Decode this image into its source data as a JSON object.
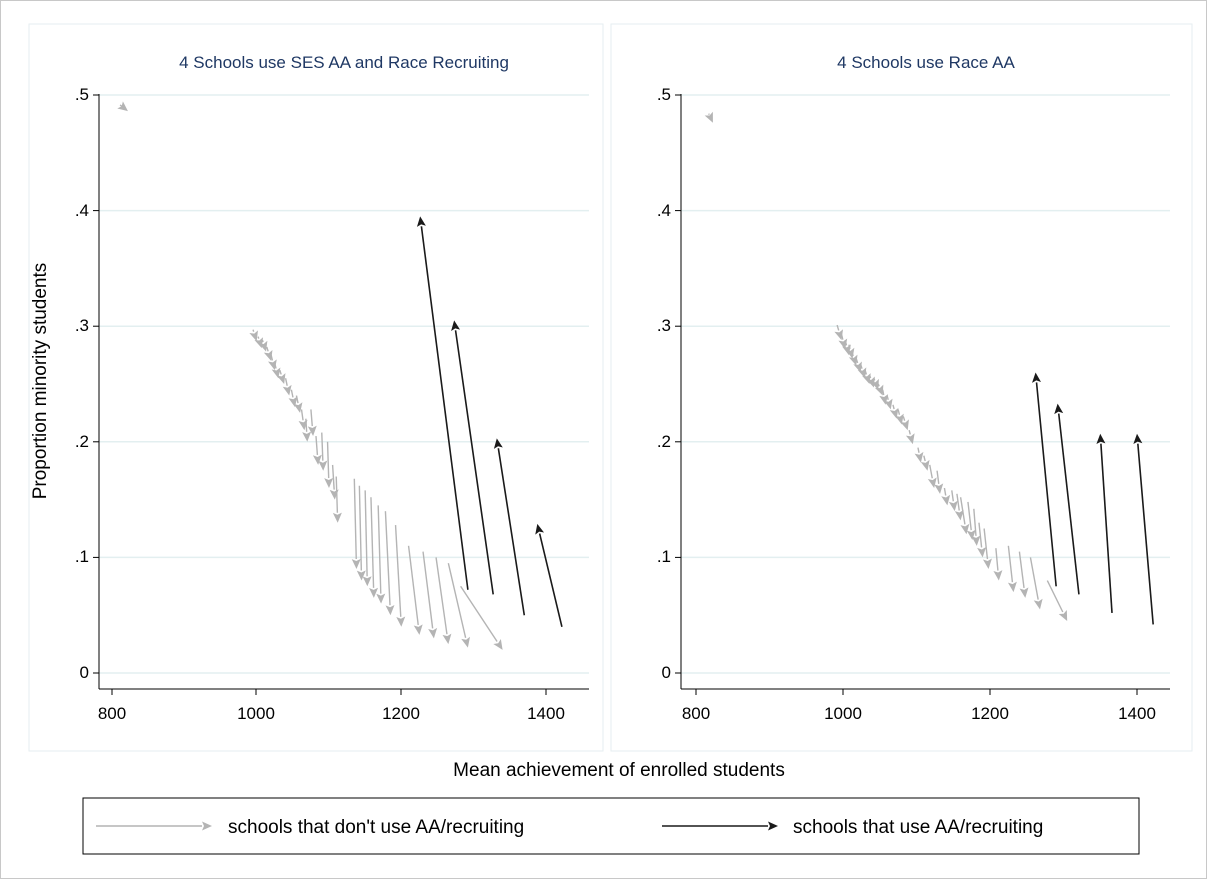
{
  "figure": {
    "ylabel": "Proportion minority students",
    "xlabel": "Mean achievement of enrolled students"
  },
  "legend": {
    "items": [
      {
        "label": "schools that don't use AA/recruiting",
        "color": "#b4b4b4"
      },
      {
        "label": "schools that use AA/recruiting",
        "color": "#1a1a1a"
      }
    ]
  },
  "chart_data": [
    {
      "type": "scatter",
      "title": "4 Schools use SES AA and Race Recruiting",
      "xlim": [
        800,
        1400
      ],
      "ylim": [
        0,
        0.5
      ],
      "xticks": [
        "800",
        "1000",
        "1200",
        "1400"
      ],
      "yticks": [
        ".5",
        ".4",
        ".3",
        ".2",
        ".1",
        "0"
      ],
      "grid": true,
      "series": [
        {
          "name": "schools that don't use AA/recruiting",
          "color": "#b4b4b4",
          "arrows": [
            {
              "from": [
                818,
                0.488
              ],
              "to": [
                822,
                0.486
              ]
            },
            {
              "from": [
                995,
                0.297
              ],
              "to": [
                1000,
                0.287
              ]
            },
            {
              "from": [
                1002,
                0.291
              ],
              "to": [
                1007,
                0.281
              ]
            },
            {
              "from": [
                1008,
                0.288
              ],
              "to": [
                1013,
                0.278
              ]
            },
            {
              "from": [
                1014,
                0.282
              ],
              "to": [
                1020,
                0.27
              ]
            },
            {
              "from": [
                1020,
                0.275
              ],
              "to": [
                1025,
                0.262
              ]
            },
            {
              "from": [
                1025,
                0.268
              ],
              "to": [
                1030,
                0.255
              ]
            },
            {
              "from": [
                1032,
                0.262
              ],
              "to": [
                1038,
                0.25
              ]
            },
            {
              "from": [
                1040,
                0.255
              ],
              "to": [
                1045,
                0.24
              ]
            },
            {
              "from": [
                1048,
                0.245
              ],
              "to": [
                1053,
                0.23
              ]
            },
            {
              "from": [
                1055,
                0.24
              ],
              "to": [
                1060,
                0.225
              ]
            },
            {
              "from": [
                1062,
                0.228
              ],
              "to": [
                1066,
                0.21
              ]
            },
            {
              "from": [
                1068,
                0.22
              ],
              "to": [
                1070,
                0.2
              ]
            },
            {
              "from": [
                1075,
                0.228
              ],
              "to": [
                1078,
                0.205
              ]
            },
            {
              "from": [
                1082,
                0.205
              ],
              "to": [
                1085,
                0.18
              ]
            },
            {
              "from": [
                1090,
                0.208
              ],
              "to": [
                1092,
                0.175
              ]
            },
            {
              "from": [
                1098,
                0.2
              ],
              "to": [
                1100,
                0.16
              ]
            },
            {
              "from": [
                1105,
                0.18
              ],
              "to": [
                1108,
                0.15
              ]
            },
            {
              "from": [
                1110,
                0.17
              ],
              "to": [
                1112,
                0.13
              ]
            },
            {
              "from": [
                1135,
                0.168
              ],
              "to": [
                1138,
                0.09
              ]
            },
            {
              "from": [
                1142,
                0.162
              ],
              "to": [
                1145,
                0.08
              ]
            },
            {
              "from": [
                1150,
                0.158
              ],
              "to": [
                1153,
                0.075
              ]
            },
            {
              "from": [
                1158,
                0.152
              ],
              "to": [
                1162,
                0.065
              ]
            },
            {
              "from": [
                1168,
                0.145
              ],
              "to": [
                1172,
                0.06
              ]
            },
            {
              "from": [
                1178,
                0.14
              ],
              "to": [
                1185,
                0.05
              ]
            },
            {
              "from": [
                1192,
                0.128
              ],
              "to": [
                1200,
                0.04
              ]
            },
            {
              "from": [
                1210,
                0.11
              ],
              "to": [
                1225,
                0.033
              ]
            },
            {
              "from": [
                1230,
                0.105
              ],
              "to": [
                1245,
                0.03
              ]
            },
            {
              "from": [
                1248,
                0.1
              ],
              "to": [
                1265,
                0.025
              ]
            },
            {
              "from": [
                1265,
                0.095
              ],
              "to": [
                1292,
                0.022
              ]
            },
            {
              "from": [
                1282,
                0.075
              ],
              "to": [
                1340,
                0.02
              ]
            }
          ]
        },
        {
          "name": "schools that use AA/recruiting",
          "color": "#1a1a1a",
          "arrows": [
            {
              "from": [
                1292,
                0.072
              ],
              "to": [
                1226,
                0.395
              ]
            },
            {
              "from": [
                1327,
                0.068
              ],
              "to": [
                1273,
                0.305
              ]
            },
            {
              "from": [
                1370,
                0.05
              ],
              "to": [
                1332,
                0.203
              ]
            },
            {
              "from": [
                1422,
                0.04
              ],
              "to": [
                1388,
                0.129
              ]
            }
          ]
        }
      ]
    },
    {
      "type": "scatter",
      "title": "4 Schools use Race AA",
      "xlim": [
        800,
        1400
      ],
      "ylim": [
        0,
        0.5
      ],
      "xticks": [
        "800",
        "1000",
        "1200",
        "1400"
      ],
      "yticks": [
        ".5",
        ".4",
        ".3",
        ".2",
        ".1",
        "0"
      ],
      "grid": true,
      "series": [
        {
          "name": "schools that don't use AA/recruiting",
          "color": "#b4b4b4",
          "arrows": [
            {
              "from": [
                818,
                0.483
              ],
              "to": [
                823,
                0.476
              ]
            },
            {
              "from": [
                992,
                0.301
              ],
              "to": [
                998,
                0.288
              ]
            },
            {
              "from": [
                998,
                0.293
              ],
              "to": [
                1003,
                0.28
              ]
            },
            {
              "from": [
                1003,
                0.288
              ],
              "to": [
                1008,
                0.275
              ]
            },
            {
              "from": [
                1008,
                0.284
              ],
              "to": [
                1013,
                0.272
              ]
            },
            {
              "from": [
                1012,
                0.278
              ],
              "to": [
                1018,
                0.266
              ]
            },
            {
              "from": [
                1018,
                0.272
              ],
              "to": [
                1024,
                0.26
              ]
            },
            {
              "from": [
                1024,
                0.267
              ],
              "to": [
                1030,
                0.255
              ]
            },
            {
              "from": [
                1030,
                0.262
              ],
              "to": [
                1036,
                0.25
              ]
            },
            {
              "from": [
                1036,
                0.258
              ],
              "to": [
                1042,
                0.247
              ]
            },
            {
              "from": [
                1042,
                0.255
              ],
              "to": [
                1048,
                0.245
              ]
            },
            {
              "from": [
                1048,
                0.25
              ],
              "to": [
                1054,
                0.24
              ]
            },
            {
              "from": [
                1054,
                0.245
              ],
              "to": [
                1058,
                0.232
              ]
            },
            {
              "from": [
                1060,
                0.24
              ],
              "to": [
                1065,
                0.228
              ]
            },
            {
              "from": [
                1068,
                0.232
              ],
              "to": [
                1073,
                0.22
              ]
            },
            {
              "from": [
                1075,
                0.228
              ],
              "to": [
                1080,
                0.215
              ]
            },
            {
              "from": [
                1082,
                0.222
              ],
              "to": [
                1088,
                0.21
              ]
            },
            {
              "from": [
                1090,
                0.21
              ],
              "to": [
                1095,
                0.198
              ]
            },
            {
              "from": [
                1102,
                0.195
              ],
              "to": [
                1106,
                0.182
              ]
            },
            {
              "from": [
                1110,
                0.188
              ],
              "to": [
                1115,
                0.175
              ]
            },
            {
              "from": [
                1118,
                0.18
              ],
              "to": [
                1124,
                0.16
              ]
            },
            {
              "from": [
                1128,
                0.175
              ],
              "to": [
                1132,
                0.155
              ]
            },
            {
              "from": [
                1138,
                0.16
              ],
              "to": [
                1142,
                0.145
              ]
            },
            {
              "from": [
                1148,
                0.158
              ],
              "to": [
                1152,
                0.14
              ]
            },
            {
              "from": [
                1155,
                0.155
              ],
              "to": [
                1160,
                0.132
              ]
            },
            {
              "from": [
                1160,
                0.152
              ],
              "to": [
                1168,
                0.12
              ]
            },
            {
              "from": [
                1170,
                0.148
              ],
              "to": [
                1176,
                0.115
              ]
            },
            {
              "from": [
                1178,
                0.142
              ],
              "to": [
                1182,
                0.11
              ]
            },
            {
              "from": [
                1185,
                0.13
              ],
              "to": [
                1190,
                0.1
              ]
            },
            {
              "from": [
                1192,
                0.125
              ],
              "to": [
                1198,
                0.09
              ]
            },
            {
              "from": [
                1208,
                0.108
              ],
              "to": [
                1212,
                0.08
              ]
            },
            {
              "from": [
                1225,
                0.11
              ],
              "to": [
                1232,
                0.07
              ]
            },
            {
              "from": [
                1240,
                0.105
              ],
              "to": [
                1248,
                0.065
              ]
            },
            {
              "from": [
                1255,
                0.1
              ],
              "to": [
                1268,
                0.055
              ]
            },
            {
              "from": [
                1278,
                0.08
              ],
              "to": [
                1305,
                0.045
              ]
            }
          ]
        },
        {
          "name": "schools that use AA/recruiting",
          "color": "#1a1a1a",
          "arrows": [
            {
              "from": [
                1290,
                0.075
              ],
              "to": [
                1262,
                0.26
              ]
            },
            {
              "from": [
                1321,
                0.068
              ],
              "to": [
                1292,
                0.233
              ]
            },
            {
              "from": [
                1366,
                0.052
              ],
              "to": [
                1350,
                0.207
              ]
            },
            {
              "from": [
                1422,
                0.042
              ],
              "to": [
                1400,
                0.207
              ]
            }
          ]
        }
      ]
    }
  ]
}
